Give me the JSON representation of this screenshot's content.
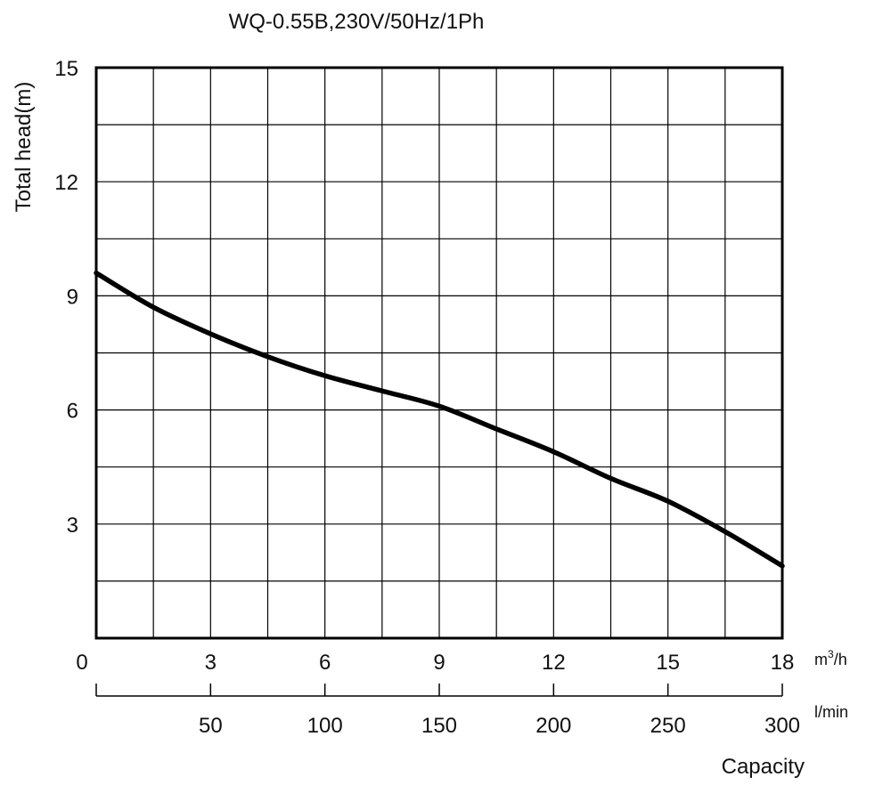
{
  "chart_data": {
    "type": "line",
    "title": "WQ-0.55B,230V/50Hz/1Ph",
    "ylabel": "Total head(m)",
    "xlabel": "Capacity",
    "x_unit": "m",
    "x_unit_sup": "3",
    "x_unit_suffix": "/h",
    "x2_unit": "l/min",
    "xlim": [
      0,
      18
    ],
    "ylim": [
      0,
      15
    ],
    "x_ticks": [
      "0",
      "3",
      "6",
      "9",
      "12",
      "15",
      "18"
    ],
    "x_tick_values": [
      0,
      3,
      6,
      9,
      12,
      15,
      18
    ],
    "y_ticks": [
      "3",
      "6",
      "9",
      "12",
      "15"
    ],
    "y_tick_values": [
      3,
      6,
      9,
      12,
      15
    ],
    "x2_ticks": [
      "50",
      "100",
      "150",
      "200",
      "250",
      "300"
    ],
    "x2_tick_values": [
      50,
      100,
      150,
      200,
      250,
      300
    ],
    "x2_lim": [
      0,
      300
    ],
    "grid": true,
    "grid_x_step": 1.5,
    "grid_y_step": 1.5,
    "series": [
      {
        "x": [
          0,
          1.5,
          3,
          4.5,
          6,
          7.5,
          9,
          10.5,
          12,
          13.5,
          15,
          16.5,
          18
        ],
        "y": [
          9.6,
          8.7,
          8.0,
          7.4,
          6.9,
          6.5,
          6.1,
          5.5,
          4.9,
          4.2,
          3.6,
          2.8,
          1.9
        ]
      }
    ]
  }
}
